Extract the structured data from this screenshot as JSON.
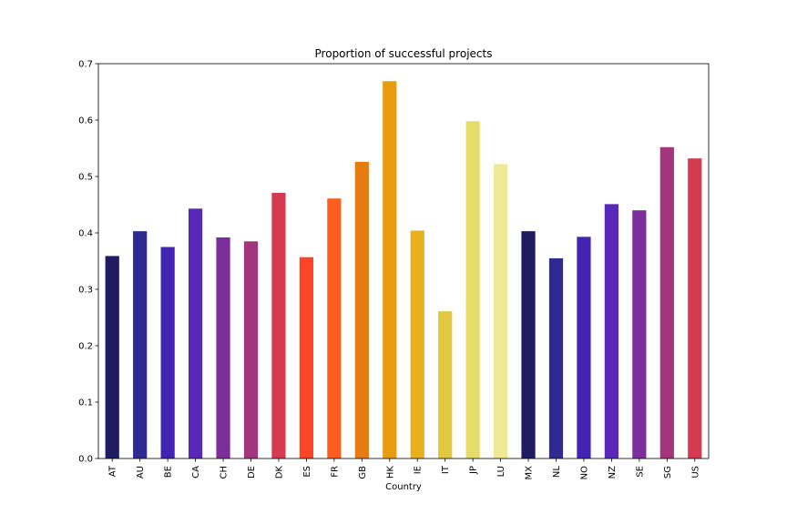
{
  "chart_data": {
    "type": "bar",
    "title": "Proportion of successful projects",
    "xlabel": "Country",
    "ylabel": "",
    "ylim": [
      0,
      0.7
    ],
    "yticks": [
      "0.0",
      "0.1",
      "0.2",
      "0.3",
      "0.4",
      "0.5",
      "0.6",
      "0.7"
    ],
    "grid": false,
    "categories": [
      "AT",
      "AU",
      "BE",
      "CA",
      "CH",
      "DE",
      "DK",
      "ES",
      "FR",
      "GB",
      "HK",
      "IE",
      "IT",
      "JP",
      "LU",
      "MX",
      "NL",
      "NO",
      "NZ",
      "SE",
      "SG",
      "US"
    ],
    "values": [
      0.359,
      0.403,
      0.375,
      0.443,
      0.392,
      0.385,
      0.471,
      0.357,
      0.461,
      0.526,
      0.669,
      0.404,
      0.261,
      0.598,
      0.522,
      0.403,
      0.355,
      0.393,
      0.451,
      0.44,
      0.552,
      0.532
    ],
    "colors": [
      "#1f1c61",
      "#2f2a91",
      "#4223b2",
      "#5a28b9",
      "#7b2f9b",
      "#a2357b",
      "#d43b50",
      "#fc4427",
      "#fb5e1e",
      "#e67c0f",
      "#e89c0f",
      "#e8b01c",
      "#e3c73e",
      "#e6dc68",
      "#efe996",
      "#1f1c61",
      "#2f2a91",
      "#4223b2",
      "#5a28b9",
      "#7b2f9b",
      "#a2357b",
      "#d43b50"
    ]
  }
}
